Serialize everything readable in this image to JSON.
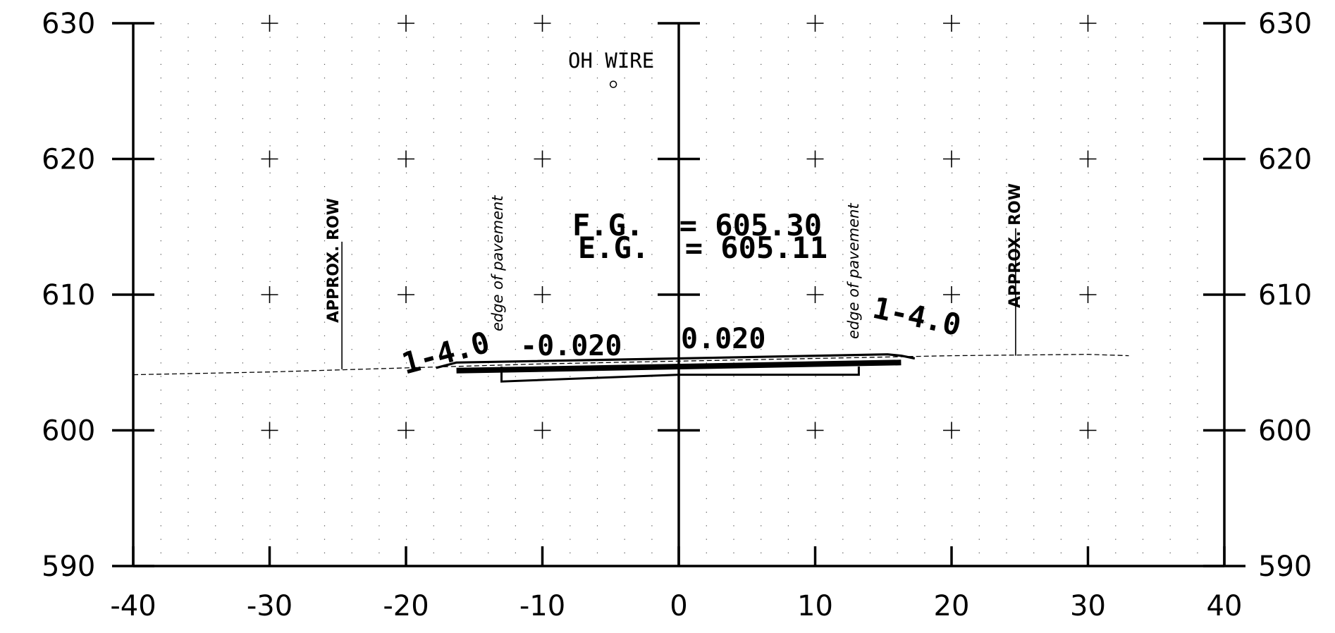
{
  "x_axis": {
    "min": -40,
    "max": 40,
    "step": 10,
    "labels": [
      "-40",
      "-30",
      "-20",
      "-10",
      "0",
      "10",
      "20",
      "30",
      "40"
    ]
  },
  "y_axis": {
    "min": 590,
    "max": 630,
    "step": 10,
    "labels": [
      "590",
      "600",
      "610",
      "620",
      "630"
    ]
  },
  "annotations": {
    "oh_wire": "OH WIRE",
    "fg": "F.G.  = 605.30",
    "eg": "E.G.  = 605.11",
    "row_left": "APPROX. ROW",
    "row_right": "APPROX. ROW",
    "edge_left": "edge of pavement",
    "edge_right": "edge of pavement",
    "slope_left": "1-4.0",
    "slope_right": "1-4.0",
    "cross_left": "-0.020",
    "cross_right": "0.020"
  },
  "existing_ground": [
    [
      -40,
      604.1
    ],
    [
      -30,
      604.3
    ],
    [
      -20,
      604.6
    ],
    [
      -10,
      604.9
    ],
    [
      0,
      605.1
    ],
    [
      10,
      605.3
    ],
    [
      20,
      605.5
    ],
    [
      30,
      605.6
    ],
    [
      33,
      605.5
    ]
  ],
  "oh_wire_point": [
    -4.8,
    625.5
  ],
  "finished_grade": [
    [
      -17.8,
      604.6
    ],
    [
      -16.3,
      605.0
    ],
    [
      0,
      605.3
    ],
    [
      15.3,
      605.6
    ],
    [
      16.3,
      605.5
    ],
    [
      17.3,
      605.3
    ]
  ],
  "subgrade_thick": [
    [
      -16.3,
      604.4
    ],
    [
      16.3,
      605.0
    ]
  ],
  "subbase_box": [
    [
      -13,
      604.7
    ],
    [
      -13,
      603.6
    ],
    [
      0,
      604.1
    ],
    [
      13.2,
      604.1
    ],
    [
      13.2,
      604.7
    ]
  ],
  "row_left_line": [
    [
      -24.7,
      604.5
    ],
    [
      -24.7,
      613.9
    ]
  ],
  "row_right_line": [
    [
      24.7,
      605.5
    ],
    [
      24.7,
      614.9
    ]
  ]
}
